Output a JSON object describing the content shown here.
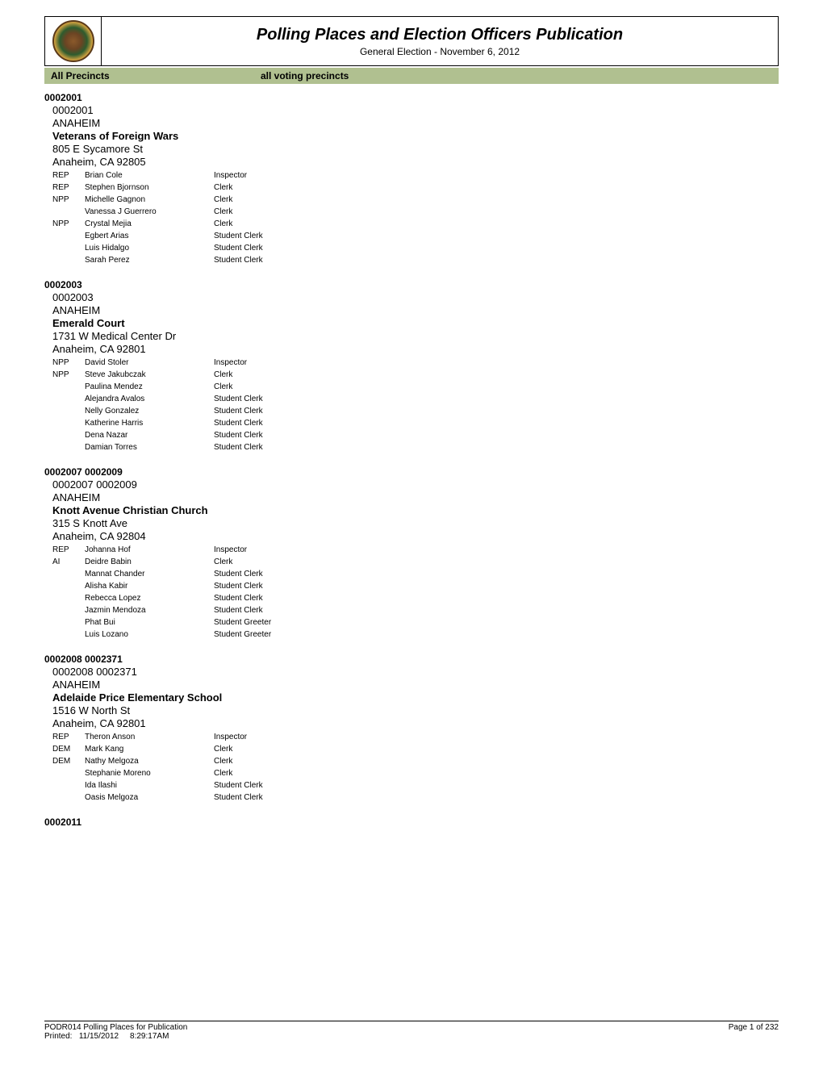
{
  "header": {
    "main_title": "Polling Places and Election Officers Publication",
    "subtitle": "General Election - November 6, 2012"
  },
  "filter_bar": {
    "label": "All Precincts",
    "value": "all voting precincts"
  },
  "precincts": [
    {
      "id_bold": "0002001",
      "id_sub": "0002001",
      "city": "ANAHEIM",
      "location_name": "Veterans of Foreign Wars",
      "address": "805 E Sycamore St",
      "city_zip": "Anaheim, CA  92805",
      "officers": [
        {
          "party": "REP",
          "name": "Brian Cole",
          "role": "Inspector"
        },
        {
          "party": "REP",
          "name": "Stephen Bjornson",
          "role": "Clerk"
        },
        {
          "party": "NPP",
          "name": "Michelle Gagnon",
          "role": "Clerk"
        },
        {
          "party": "",
          "name": "Vanessa J Guerrero",
          "role": "Clerk"
        },
        {
          "party": "NPP",
          "name": "Crystal Mejia",
          "role": "Clerk"
        },
        {
          "party": "",
          "name": "Egbert Arias",
          "role": "Student Clerk"
        },
        {
          "party": "",
          "name": "Luis Hidalgo",
          "role": "Student Clerk"
        },
        {
          "party": "",
          "name": "Sarah Perez",
          "role": "Student Clerk"
        }
      ]
    },
    {
      "id_bold": "0002003",
      "id_sub": "0002003",
      "city": "ANAHEIM",
      "location_name": "Emerald Court",
      "address": "1731 W Medical Center Dr",
      "city_zip": "Anaheim, CA  92801",
      "officers": [
        {
          "party": "NPP",
          "name": "David Stoler",
          "role": "Inspector"
        },
        {
          "party": "NPP",
          "name": "Steve Jakubczak",
          "role": "Clerk"
        },
        {
          "party": "",
          "name": "Paulina Mendez",
          "role": "Clerk"
        },
        {
          "party": "",
          "name": "Alejandra Avalos",
          "role": "Student Clerk"
        },
        {
          "party": "",
          "name": "Nelly Gonzalez",
          "role": "Student Clerk"
        },
        {
          "party": "",
          "name": "Katherine Harris",
          "role": "Student Clerk"
        },
        {
          "party": "",
          "name": "Dena Nazar",
          "role": "Student Clerk"
        },
        {
          "party": "",
          "name": "Damian Torres",
          "role": "Student Clerk"
        }
      ]
    },
    {
      "id_bold": "0002007  0002009",
      "id_sub": "0002007  0002009",
      "city": "ANAHEIM",
      "location_name": "Knott Avenue Christian Church",
      "address": "315 S Knott Ave",
      "city_zip": "Anaheim, CA  92804",
      "officers": [
        {
          "party": "REP",
          "name": "Johanna Hof",
          "role": "Inspector"
        },
        {
          "party": "AI",
          "name": "Deidre Babin",
          "role": "Clerk"
        },
        {
          "party": "",
          "name": "Mannat Chander",
          "role": "Student Clerk"
        },
        {
          "party": "",
          "name": "Alisha Kabir",
          "role": "Student Clerk"
        },
        {
          "party": "",
          "name": "Rebecca Lopez",
          "role": "Student Clerk"
        },
        {
          "party": "",
          "name": "Jazmin Mendoza",
          "role": "Student Clerk"
        },
        {
          "party": "",
          "name": "Phat Bui",
          "role": "Student Greeter"
        },
        {
          "party": "",
          "name": "Luis Lozano",
          "role": "Student Greeter"
        }
      ]
    },
    {
      "id_bold": "0002008  0002371",
      "id_sub": "0002008  0002371",
      "city": "ANAHEIM",
      "location_name": "Adelaide Price Elementary School",
      "address": "1516 W North St",
      "city_zip": "Anaheim, CA  92801",
      "officers": [
        {
          "party": "REP",
          "name": "Theron Anson",
          "role": "Inspector"
        },
        {
          "party": "DEM",
          "name": "Mark Kang",
          "role": "Clerk"
        },
        {
          "party": "DEM",
          "name": "Nathy Melgoza",
          "role": "Clerk"
        },
        {
          "party": "",
          "name": "Stephanie Moreno",
          "role": "Clerk"
        },
        {
          "party": "",
          "name": "Ida Ilashi",
          "role": "Student Clerk"
        },
        {
          "party": "",
          "name": "Oasis Melgoza",
          "role": "Student Clerk"
        }
      ]
    }
  ],
  "next_precinct_id": "0002011",
  "footer": {
    "report_name": "PODR014 Polling Places for Publication",
    "printed_label": "Printed:",
    "printed_date": "11/15/2012",
    "printed_time": "8:29:17AM",
    "page_label": "Page 1 of 232"
  },
  "colors": {
    "background": "#ffffff",
    "text": "#000000",
    "filter_bar_bg": "#b0c090",
    "border": "#000000"
  },
  "typography": {
    "body_font": "Arial, Helvetica, sans-serif",
    "main_title_size": 20,
    "main_title_weight": "bold",
    "main_title_style": "italic",
    "subtitle_size": 12,
    "filter_size": 12,
    "precinct_id_size": 12,
    "location_text_size": 13,
    "officer_text_size": 10,
    "footer_size": 10
  }
}
